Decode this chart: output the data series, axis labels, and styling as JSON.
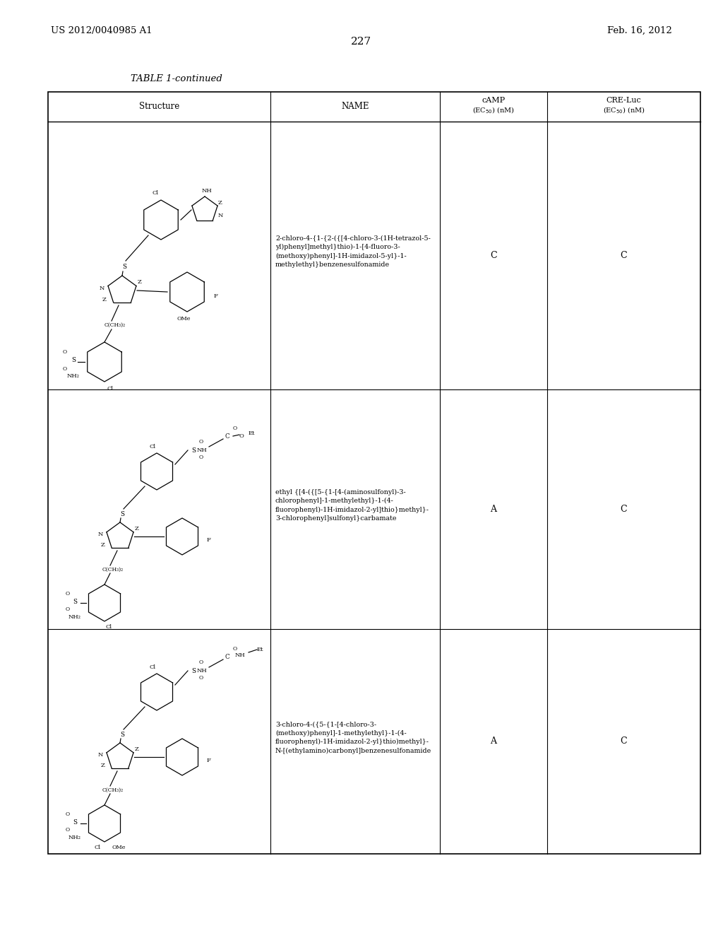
{
  "page_left": "US 2012/0040985 A1",
  "page_right": "Feb. 16, 2012",
  "page_number": "227",
  "table_title": "TABLE 1-continued",
  "background": "#ffffff",
  "text_color": "#000000",
  "rows": [
    {
      "camp": "C",
      "cre_luc": "C",
      "name_lines": [
        "2-chloro-4-{1-{2-({[4-chloro-3-(1H-tetrazol-5-",
        "yl)phenyl]methyl}thio)-1-[4-fluoro-3-",
        "(methoxy)phenyl]-1H-imidazol-5-yl}-1-",
        "methylethyl}benzenesulfonamide"
      ]
    },
    {
      "camp": "A",
      "cre_luc": "C",
      "name_lines": [
        "ethyl {[4-({[5-{1-[4-(aminosulfonyl)-3-",
        "chlorophenyl]-1-methylethyl}-1-(4-",
        "fluorophenyl)-1H-imidazol-2-yl]thio}methyl}-",
        "3-chlorophenyl]sulfonyl}carbamate"
      ]
    },
    {
      "camp": "A",
      "cre_luc": "C",
      "name_lines": [
        "3-chloro-4-({5-{1-[4-chloro-3-",
        "(methoxy)phenyl]-1-methylethyl}-1-(4-",
        "fluorophenyl)-1H-imidazol-2-yl}thio)methyl}-",
        "N-[(ethylamino)carbonyl]benzenesulfonamide"
      ]
    }
  ]
}
